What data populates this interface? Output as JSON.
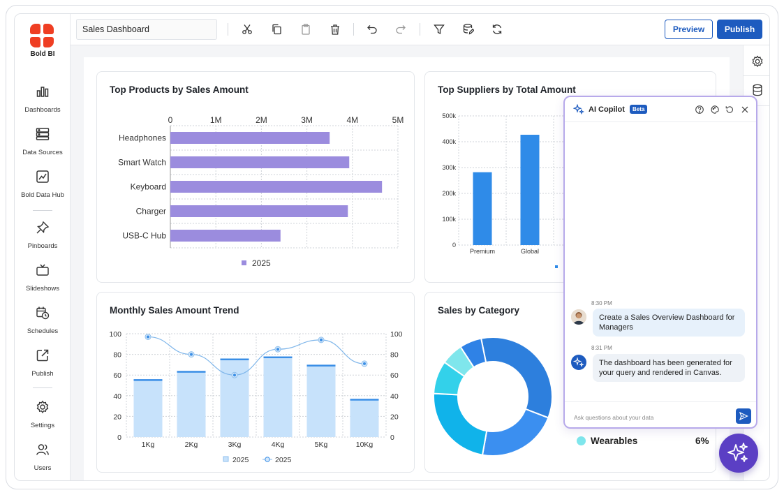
{
  "brand": {
    "name": "Bold BI",
    "colors": {
      "logo": "#ef3e23",
      "primary": "#1d5bbf",
      "bar": "#9b8cde",
      "copilot": "#5b3fc4"
    }
  },
  "sidebar": {
    "items": [
      {
        "label": "Dashboards",
        "icon": "bar-chart-icon"
      },
      {
        "label": "Data Sources",
        "icon": "server-icon"
      },
      {
        "label": "Bold Data Hub",
        "icon": "chart-image-icon"
      },
      {
        "label": "Pinboards",
        "icon": "pin-icon"
      },
      {
        "label": "Slideshows",
        "icon": "tv-icon"
      },
      {
        "label": "Schedules",
        "icon": "calendar-clock-icon"
      },
      {
        "label": "Publish",
        "icon": "share-icon"
      },
      {
        "label": "Settings",
        "icon": "gear-icon"
      },
      {
        "label": "Users",
        "icon": "users-icon"
      }
    ]
  },
  "toolbar": {
    "title_value": "Sales Dashboard",
    "preview_label": "Preview",
    "publish_label": "Publish",
    "icons": [
      "cut-icon",
      "copy-icon",
      "paste-icon",
      "delete-icon",
      "undo-icon",
      "redo-icon",
      "filter-icon",
      "data-edit-icon",
      "refresh-icon"
    ]
  },
  "widgets": {
    "top_products": {
      "title": "Top Products by Sales Amount",
      "chart_data": {
        "type": "bar",
        "orientation": "horizontal",
        "categories": [
          "Headphones",
          "Smart Watch",
          "Keyboard",
          "Charger",
          "USB-C Hub"
        ],
        "series": [
          {
            "name": "2025",
            "values": [
              3500000,
              3930000,
              4650000,
              3900000,
              2420000
            ]
          }
        ],
        "x_ticks": [
          "0",
          "1M",
          "2M",
          "3M",
          "4M",
          "5M"
        ],
        "xlim": [
          0,
          5000000
        ],
        "legend": "bottom",
        "grid": true
      }
    },
    "top_suppliers": {
      "title": "Top Suppliers by Total Amount",
      "chart_data": {
        "type": "bar",
        "categories": [
          "Premium",
          "Global"
        ],
        "values": [
          282000,
          427000
        ],
        "y_ticks": [
          "0",
          "100k",
          "200k",
          "300k",
          "400k",
          "500k"
        ],
        "ylim": [
          0,
          500000
        ],
        "grid": true
      }
    },
    "monthly_trend": {
      "title": "Monthly Sales Amount Trend",
      "chart_data": {
        "type": "bar",
        "categories": [
          "1Kg",
          "2Kg",
          "3Kg",
          "4Kg",
          "5Kg",
          "10Kg"
        ],
        "series": [
          {
            "name": "2025",
            "kind": "bar",
            "values": [
              56,
              64,
              76,
              78,
              70,
              37
            ]
          },
          {
            "name": "2025",
            "kind": "line",
            "values": [
              97,
              80,
              60,
              85,
              94,
              71
            ]
          }
        ],
        "y_ticks": [
          "0",
          "20",
          "40",
          "60",
          "80",
          "100"
        ],
        "ylim": [
          0,
          100
        ],
        "legend": "bottom",
        "grid": true
      }
    },
    "sales_by_category": {
      "title": "Sales by Category",
      "legend_item": {
        "label": "Wearables",
        "value": "6%",
        "color": "#7fe6ec"
      },
      "chart_data": {
        "type": "pie",
        "donut": true,
        "slices": [
          {
            "value": 34,
            "color": "#2d7fdd"
          },
          {
            "value": 22,
            "color": "#3b8ff0"
          },
          {
            "value": 23,
            "color": "#10b3ea"
          },
          {
            "value": 9,
            "color": "#33d1ea"
          },
          {
            "value": 6,
            "color": "#7fe6ec"
          },
          {
            "value": 6,
            "color": "#2f82e6"
          }
        ]
      }
    }
  },
  "copilot": {
    "title": "AI Copilot",
    "badge": "Beta",
    "messages": [
      {
        "time": "8:30 PM",
        "from": "user",
        "text": "Create a Sales Overview Dashboard for Managers"
      },
      {
        "time": "8:31 PM",
        "from": "assistant",
        "text": "The dashboard has been generated for your query and rendered in Canvas."
      }
    ],
    "input_placeholder": "Ask questions about your data"
  }
}
